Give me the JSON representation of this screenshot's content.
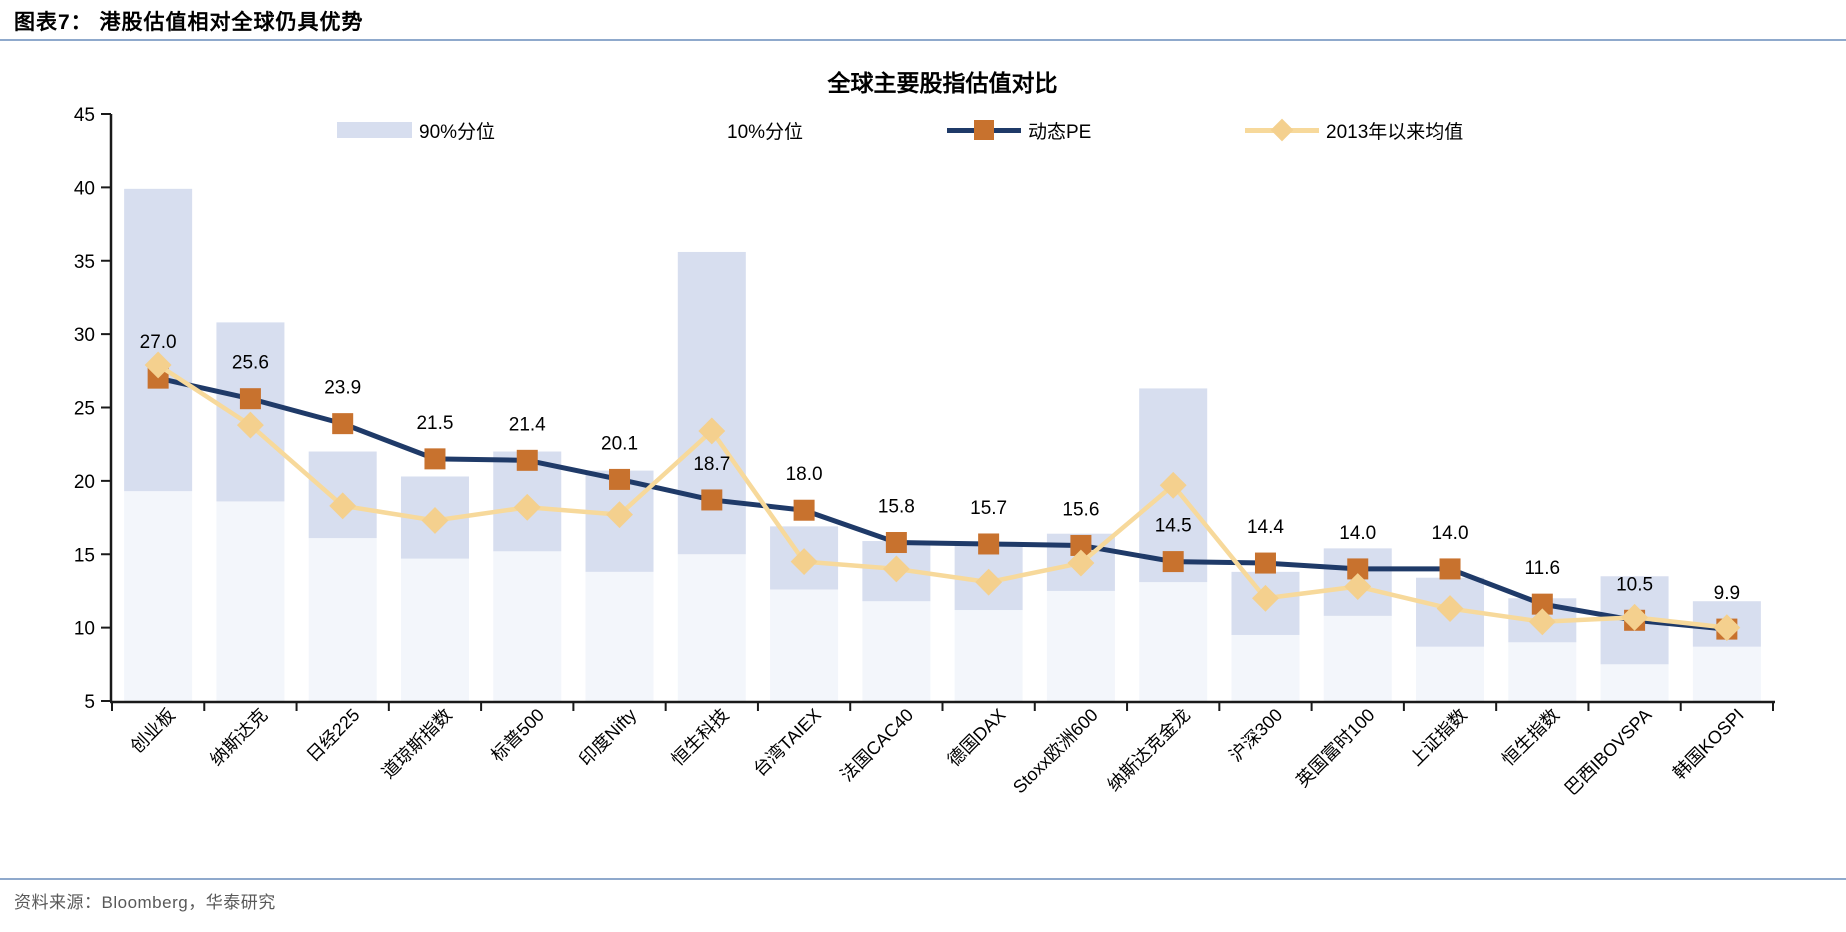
{
  "header": {
    "title": "图表7：  港股估值相对全球仍具优势"
  },
  "chart_data": {
    "type": "combo_bar_line",
    "title": "全球主要股指估值对比",
    "categories": [
      "创业板",
      "纳斯达克",
      "日经225",
      "道琼斯指数",
      "标普500",
      "印度Nifty",
      "恒生科技",
      "台湾TAIEX",
      "法国CAC40",
      "德国DAX",
      "Stoxx欧洲600",
      "纳斯达克金龙",
      "沪深300",
      "英国富时100",
      "上证指数",
      "恒生指数",
      "巴西IBOVSPA",
      "韩国KOSPI"
    ],
    "series": [
      {
        "name": "90%分位",
        "type": "range_bar_top",
        "values": [
          39.9,
          30.8,
          22.0,
          20.3,
          22.0,
          20.7,
          35.6,
          16.9,
          15.9,
          15.7,
          16.4,
          26.3,
          13.8,
          15.4,
          13.4,
          12.0,
          13.5,
          11.8
        ]
      },
      {
        "name": "10%分位",
        "type": "range_bar_bottom",
        "values": [
          19.3,
          18.6,
          16.1,
          14.7,
          15.2,
          13.8,
          15.0,
          12.6,
          11.8,
          11.2,
          12.5,
          13.1,
          9.5,
          10.8,
          8.7,
          9.0,
          7.5,
          8.7
        ]
      },
      {
        "name": "动态PE",
        "type": "line",
        "labeled": true,
        "values": [
          27.0,
          25.6,
          23.9,
          21.5,
          21.4,
          20.1,
          18.7,
          18.0,
          15.8,
          15.7,
          15.6,
          14.5,
          14.4,
          14.0,
          14.0,
          11.6,
          10.5,
          9.9
        ]
      },
      {
        "name": "2013年以来均值",
        "type": "line",
        "values": [
          27.9,
          23.8,
          18.3,
          17.3,
          18.2,
          17.7,
          23.4,
          14.5,
          14.0,
          13.1,
          14.4,
          19.7,
          12.0,
          12.8,
          11.3,
          10.4,
          10.7,
          10.0
        ]
      }
    ],
    "ylim": [
      5,
      45
    ],
    "yticks": [
      5,
      10,
      15,
      20,
      25,
      30,
      35,
      40,
      45
    ],
    "grid": false,
    "legend_position": "top"
  },
  "colors": {
    "rule": "#8fa9cc",
    "bar_90": "#d7deef",
    "bar_10": "#f3f6fb",
    "pe_line": "#1f3a68",
    "pe_marker": "#c8722e",
    "avg_line": "#f7d99b",
    "avg_marker": "#f4d08e",
    "axis": "#1a1a1a",
    "source_text": "#595959"
  },
  "footer": {
    "source": "资料来源：Bloomberg，华泰研究"
  }
}
